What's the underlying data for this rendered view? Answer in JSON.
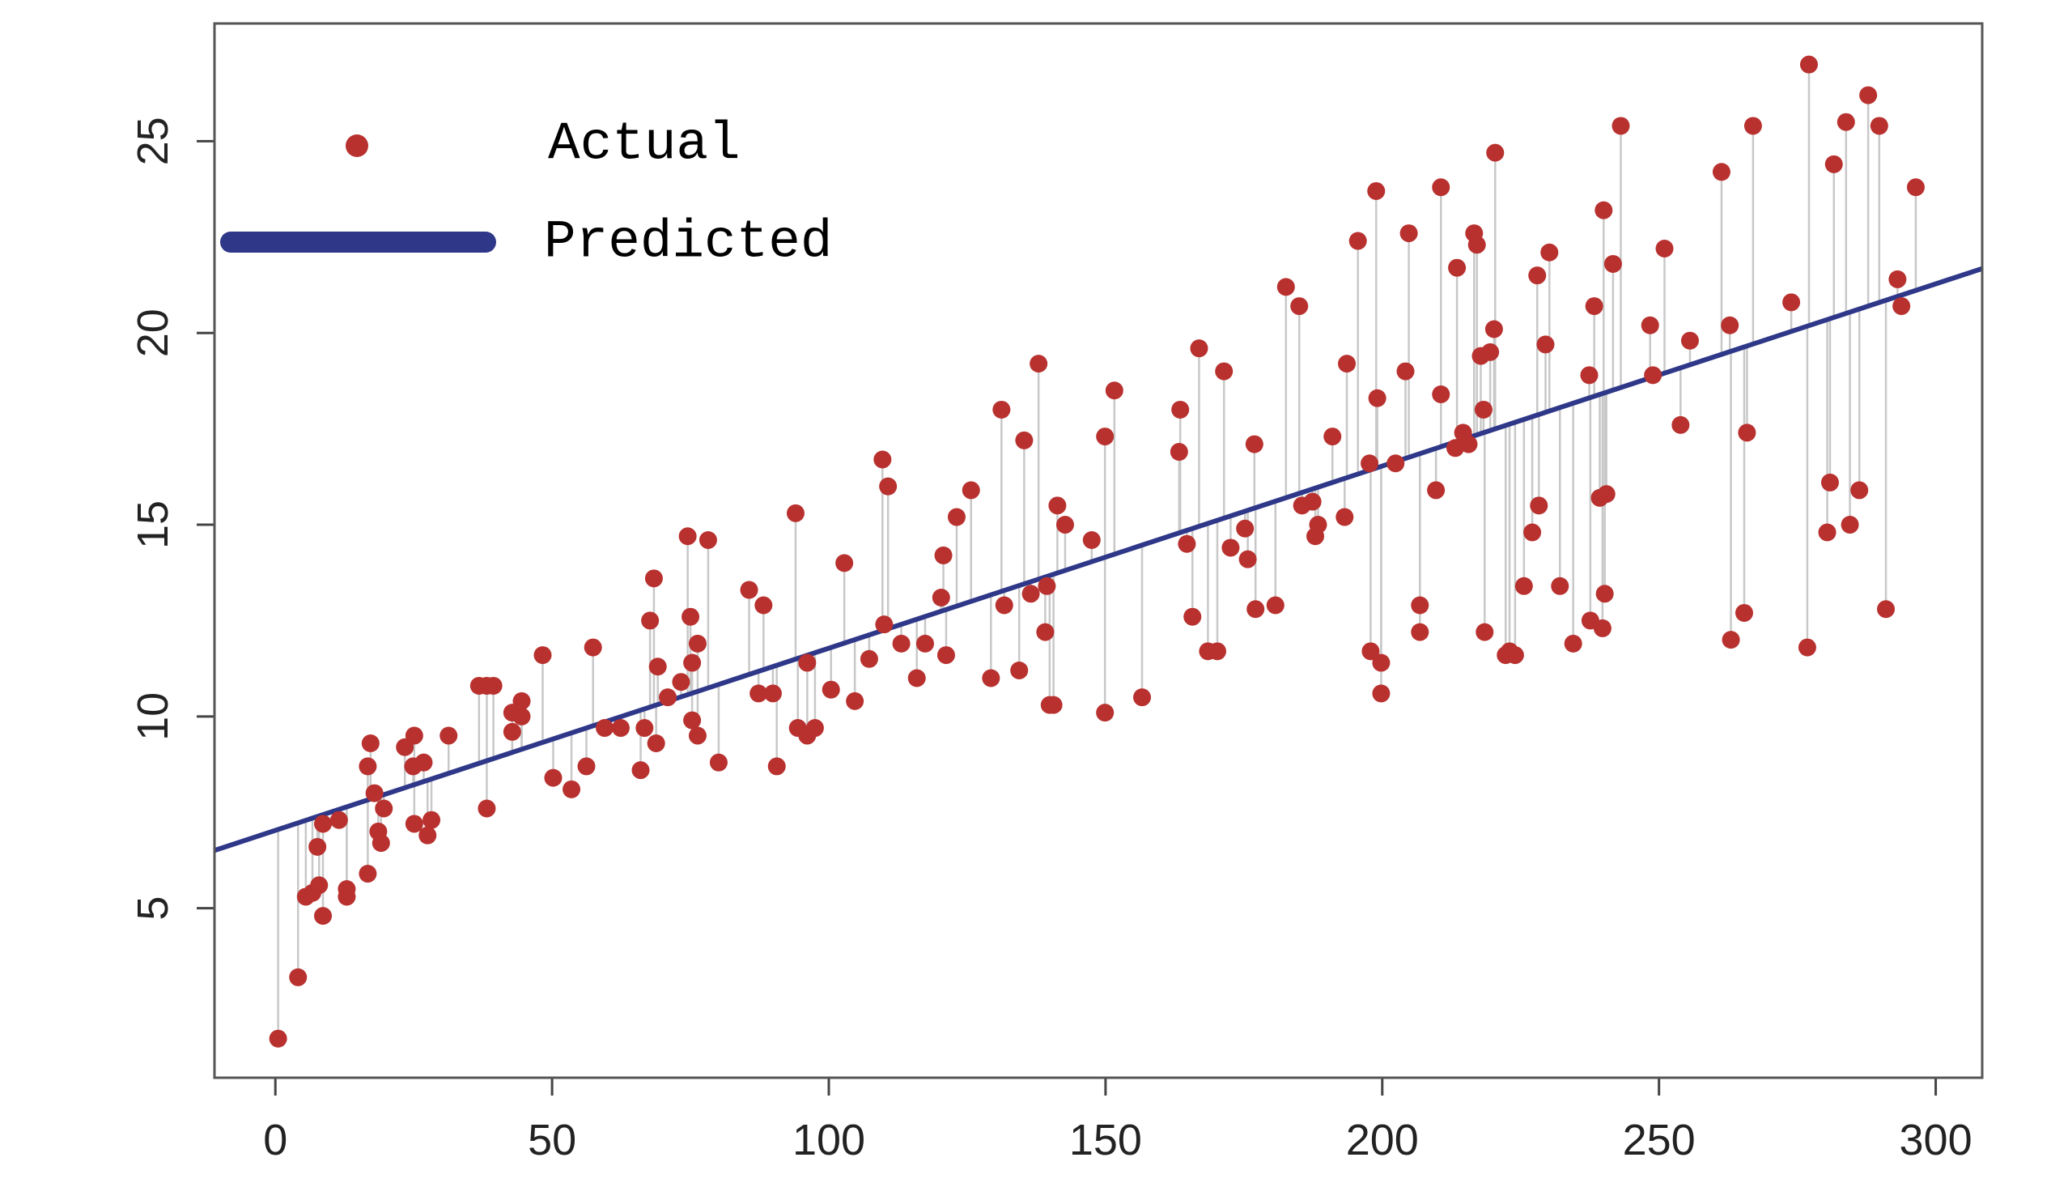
{
  "chart_data": {
    "type": "scatter",
    "x": [
      0.5,
      4.1,
      5.5,
      6.7,
      7.6,
      7.9,
      8.6,
      8.6,
      11.5,
      12.9,
      12.9,
      16.7,
      16.7,
      17.2,
      17.9,
      18.6,
      19.1,
      19.6,
      23.4,
      25.1,
      24.9,
      25.1,
      26.8,
      27.5,
      28.2,
      31.3,
      36.8,
      38.2,
      38.2,
      39.4,
      42.8,
      42.8,
      44.5,
      44.5,
      48.3,
      50.2,
      53.5,
      56.2,
      57.4,
      59.5,
      62.4,
      66.0,
      66.7,
      67.7,
      68.4,
      68.8,
      69.1,
      70.9,
      73.3,
      74.5,
      75.0,
      75.3,
      75.3,
      76.3,
      76.3,
      78.2,
      80.1,
      85.6,
      88.2,
      87.3,
      89.9,
      90.6,
      94.0,
      94.4,
      96.1,
      96.1,
      97.5,
      100.4,
      102.8,
      104.7,
      107.3,
      109.7,
      110.0,
      110.7,
      113.1,
      115.9,
      117.4,
      120.3,
      120.7,
      121.2,
      123.1,
      125.7,
      129.3,
      131.2,
      131.7,
      134.4,
      135.3,
      136.5,
      137.9,
      139.1,
      139.4,
      139.9,
      140.6,
      141.3,
      142.7,
      147.5,
      149.9,
      149.9,
      151.6,
      156.6,
      163.3,
      163.5,
      164.7,
      165.7,
      166.9,
      168.5,
      170.2,
      171.4,
      172.6,
      175.2,
      175.7,
      176.9,
      177.1,
      180.7,
      182.6,
      185.0,
      185.5,
      187.4,
      187.9,
      188.4,
      191.0,
      193.2,
      193.6,
      195.6,
      197.7,
      197.9,
      198.9,
      199.1,
      199.8,
      199.8,
      202.4,
      204.2,
      204.8,
      206.8,
      206.8,
      209.7,
      210.6,
      210.6,
      213.5,
      213.2,
      214.6,
      215.6,
      216.6,
      217.1,
      218.3,
      218.5,
      217.8,
      219.5,
      220.2,
      220.4,
      222.3,
      223.0,
      224.0,
      225.6,
      227.1,
      228.0,
      228.3,
      229.5,
      230.2,
      232.1,
      234.5,
      237.4,
      237.6,
      238.3,
      239.3,
      239.8,
      240.0,
      240.2,
      240.5,
      241.7,
      243.1,
      248.4,
      248.9,
      251.0,
      253.9,
      255.6,
      261.3,
      262.8,
      263.0,
      265.4,
      265.9,
      267.0,
      273.9,
      276.8,
      277.1,
      280.4,
      280.9,
      281.6,
      283.8,
      284.5,
      286.2,
      287.8,
      289.8,
      291.0,
      293.1,
      293.8,
      296.4
    ],
    "series": [
      {
        "name": "Actual",
        "color": "#b8312f",
        "values": [
          1.6,
          3.2,
          5.3,
          5.4,
          6.6,
          5.6,
          4.8,
          7.2,
          7.3,
          5.5,
          5.3,
          5.9,
          8.7,
          9.3,
          8.0,
          7.0,
          6.7,
          7.6,
          9.2,
          9.5,
          8.7,
          7.2,
          8.8,
          6.9,
          7.3,
          9.5,
          10.8,
          10.8,
          7.6,
          10.8,
          9.6,
          10.1,
          10.4,
          10.0,
          11.6,
          8.4,
          8.1,
          8.7,
          11.8,
          9.7,
          9.7,
          8.6,
          9.7,
          12.5,
          13.6,
          9.3,
          11.3,
          10.5,
          10.9,
          14.7,
          12.6,
          11.4,
          9.9,
          11.9,
          9.5,
          14.6,
          8.8,
          13.3,
          12.9,
          10.6,
          10.6,
          8.7,
          15.3,
          9.7,
          11.4,
          9.5,
          9.7,
          10.7,
          14.0,
          10.4,
          11.5,
          16.7,
          12.4,
          16.0,
          11.9,
          11.0,
          11.9,
          13.1,
          14.2,
          11.6,
          15.2,
          15.9,
          11.0,
          18.0,
          12.9,
          11.2,
          17.2,
          13.2,
          19.2,
          12.2,
          13.4,
          10.3,
          10.3,
          15.5,
          15.0,
          14.6,
          17.3,
          10.1,
          18.5,
          10.5,
          16.9,
          18.0,
          14.5,
          12.6,
          19.6,
          11.7,
          11.7,
          19.0,
          14.4,
          14.9,
          14.1,
          17.1,
          12.8,
          12.9,
          21.2,
          20.7,
          15.5,
          15.6,
          14.7,
          15.0,
          17.3,
          15.2,
          19.2,
          22.4,
          16.6,
          11.7,
          23.7,
          18.3,
          11.4,
          10.6,
          16.6,
          19.0,
          22.6,
          12.9,
          12.2,
          15.9,
          18.4,
          23.8,
          21.7,
          17.0,
          17.4,
          17.1,
          22.6,
          22.3,
          18.0,
          12.2,
          19.4,
          19.5,
          20.1,
          24.7,
          11.6,
          11.7,
          11.6,
          13.4,
          14.8,
          21.5,
          15.5,
          19.7,
          22.1,
          13.4,
          11.9,
          18.9,
          12.5,
          20.7,
          15.7,
          12.3,
          23.2,
          13.2,
          15.8,
          21.8,
          25.4,
          20.2,
          18.9,
          22.2,
          17.6,
          19.8,
          24.2,
          20.2,
          12.0,
          12.7,
          17.4,
          25.4,
          20.8,
          11.8,
          27.0,
          14.8,
          16.1,
          24.4,
          25.5,
          15.0,
          15.9,
          26.2,
          25.4,
          12.8,
          21.4,
          20.7,
          23.8
        ]
      }
    ],
    "fit": {
      "name": "Predicted",
      "color": "#2e3788",
      "intercept": 7.03,
      "slope": 0.0475
    },
    "xlim": [
      -11,
      308.4
    ],
    "ylim": [
      0.58,
      28.07
    ],
    "xticks": [
      0,
      50,
      100,
      150,
      200,
      250,
      300
    ],
    "yticks": [
      5,
      10,
      15,
      20,
      25
    ]
  }
}
